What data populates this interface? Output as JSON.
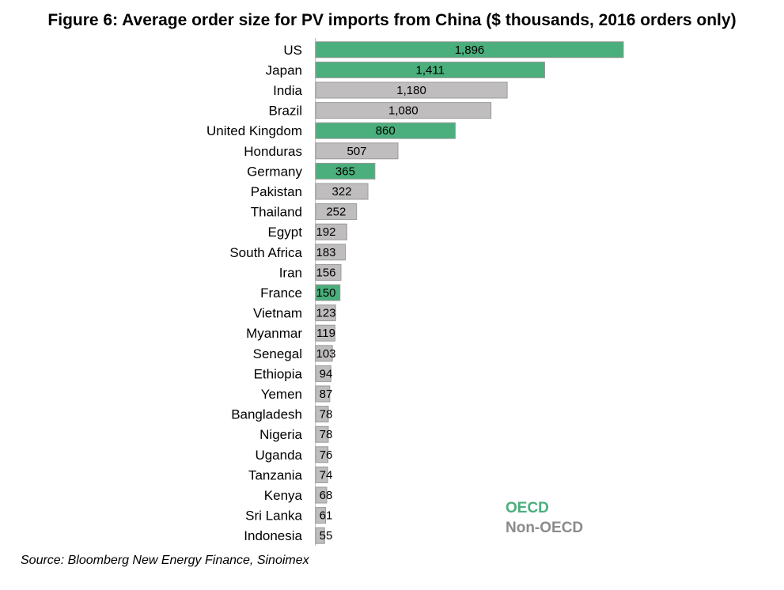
{
  "chart_data": {
    "type": "bar",
    "orientation": "horizontal",
    "title": "Figure 6: Average order size for PV imports from China ($ thousands, 2016 orders only)",
    "categories": [
      "US",
      "Japan",
      "India",
      "Brazil",
      "United Kingdom",
      "Honduras",
      "Germany",
      "Pakistan",
      "Thailand",
      "Egypt",
      "South Africa",
      "Iran",
      "France",
      "Vietnam",
      "Myanmar",
      "Senegal",
      "Ethiopia",
      "Yemen",
      "Bangladesh",
      "Nigeria",
      "Uganda",
      "Tanzania",
      "Kenya",
      "Sri Lanka",
      "Indonesia"
    ],
    "values": [
      1896,
      1411,
      1180,
      1080,
      860,
      507,
      365,
      322,
      252,
      192,
      183,
      156,
      150,
      123,
      119,
      103,
      94,
      87,
      78,
      78,
      76,
      74,
      68,
      61,
      55
    ],
    "value_labels": [
      "1,896",
      "1,411",
      "1,180",
      "1,080",
      "860",
      "507",
      "365",
      "322",
      "252",
      "192",
      "183",
      "156",
      "150",
      "123",
      "119",
      "103",
      "94",
      "87",
      "78",
      "78",
      "76",
      "74",
      "68",
      "61",
      "55"
    ],
    "groups": [
      "OECD",
      "OECD",
      "Non-OECD",
      "Non-OECD",
      "OECD",
      "Non-OECD",
      "OECD",
      "Non-OECD",
      "Non-OECD",
      "Non-OECD",
      "Non-OECD",
      "Non-OECD",
      "OECD",
      "Non-OECD",
      "Non-OECD",
      "Non-OECD",
      "Non-OECD",
      "Non-OECD",
      "Non-OECD",
      "Non-OECD",
      "Non-OECD",
      "Non-OECD",
      "Non-OECD",
      "Non-OECD",
      "Non-OECD"
    ],
    "legend": [
      {
        "name": "OECD",
        "color": "#4aaf7c"
      },
      {
        "name": "Non-OECD",
        "color": "#bfbdbe"
      }
    ],
    "legend_placement": "bottom-right",
    "xlim": [
      0,
      1896
    ],
    "grid": false
  },
  "source": "Source: Bloomberg New Energy Finance, Sinoimex"
}
